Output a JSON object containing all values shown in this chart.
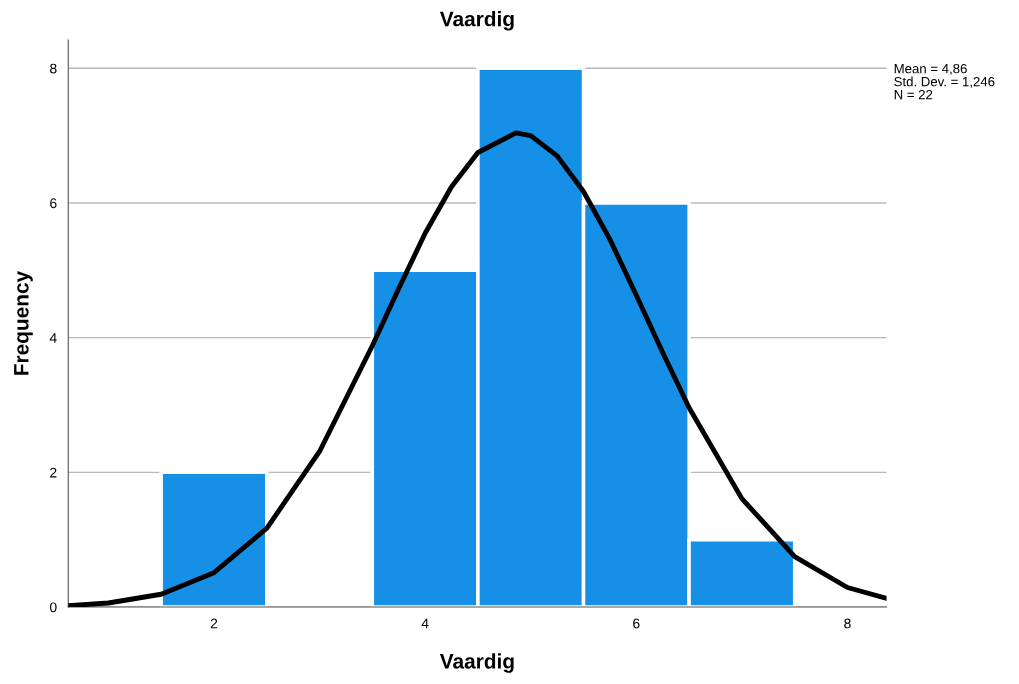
{
  "chart_data": {
    "type": "histogram",
    "title": "Vaardig",
    "xlabel": "Vaardig",
    "ylabel": "Frequency",
    "bins": [
      1.5,
      2.5,
      3.5,
      4.5,
      5.5,
      6.5,
      7.5
    ],
    "values": [
      2,
      0,
      5,
      8,
      6,
      1
    ],
    "color": "#1590e6",
    "series": [
      {
        "type": "line",
        "color": "#000000",
        "x": [
          0.62,
          1.0,
          1.5,
          2.0,
          2.5,
          3.0,
          3.5,
          3.75,
          4.0,
          4.25,
          4.5,
          4.86,
          5.0,
          5.25,
          5.5,
          5.75,
          6.0,
          6.25,
          6.5,
          7.0,
          7.5,
          8.0,
          8.37
        ],
        "values": [
          0.02,
          0.06,
          0.19,
          0.51,
          1.17,
          2.31,
          3.88,
          4.73,
          5.55,
          6.24,
          6.75,
          7.04,
          7.0,
          6.7,
          6.17,
          5.46,
          4.63,
          3.78,
          2.96,
          1.61,
          0.75,
          0.29,
          0.13
        ]
      }
    ],
    "xlim": [
      0.62,
      8.37
    ],
    "ylim": [
      0,
      8.42
    ],
    "xticks": [
      2,
      4,
      6,
      8
    ],
    "yticks": [
      0,
      2,
      4,
      6,
      8
    ],
    "grid": "y",
    "annotations": [
      "Mean = 4,86",
      "Std. Dev. = 1,246",
      "N = 22"
    ]
  }
}
